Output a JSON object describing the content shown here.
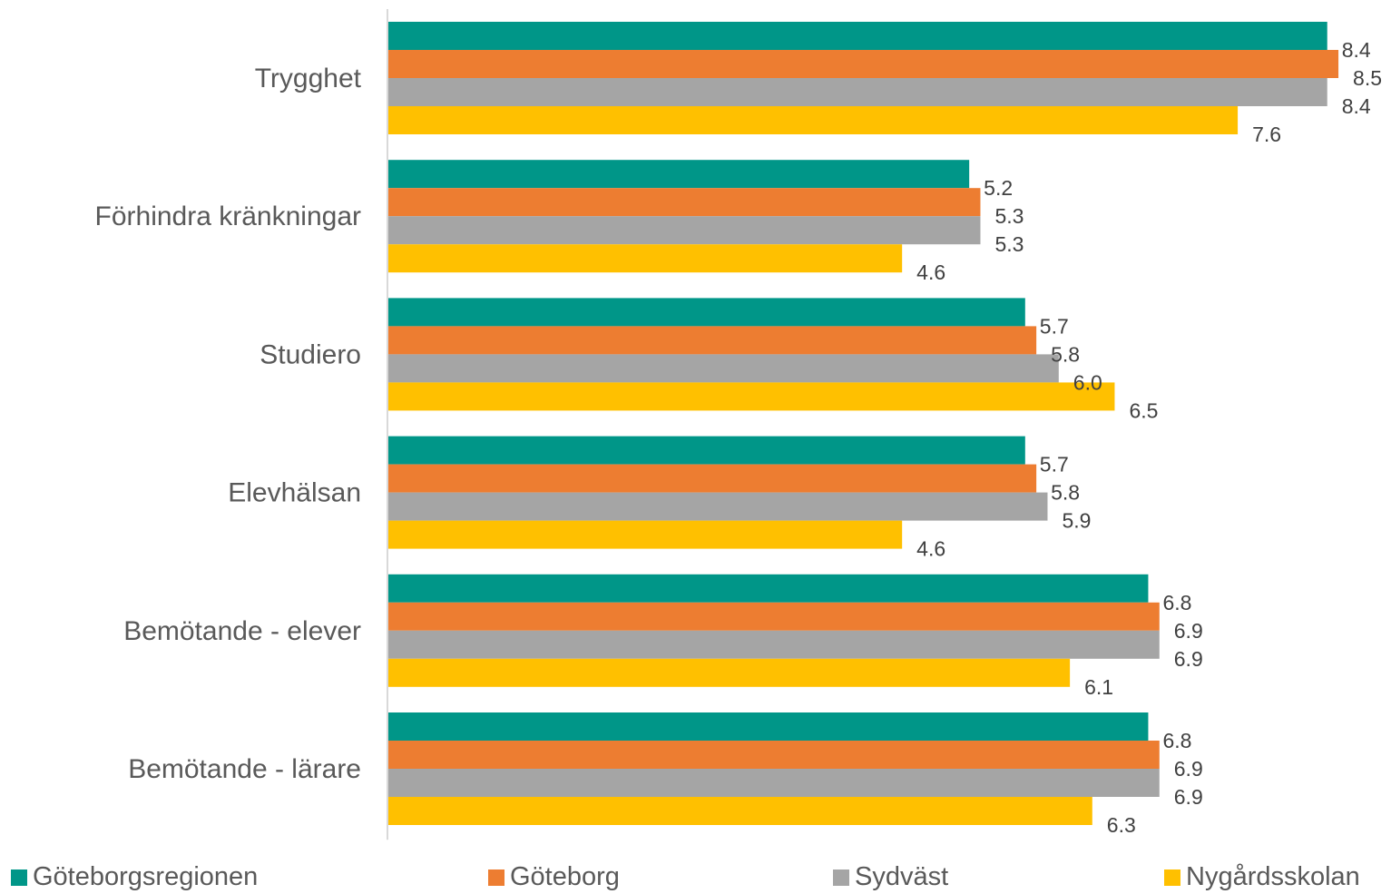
{
  "chart_data": {
    "type": "bar",
    "orientation": "horizontal",
    "categories": [
      "Trygghet",
      "Förhindra kränkningar",
      "Studiero",
      "Elevhälsan",
      "Bemötande - elever",
      "Bemötande - lärare"
    ],
    "series": [
      {
        "name": "Göteborgsregionen",
        "color": "#009688",
        "values": [
          8.4,
          5.2,
          5.7,
          5.7,
          6.8,
          6.8
        ],
        "labels": [
          "8.4",
          "5.2",
          "5.7",
          "5.7",
          "6.8",
          "6.8"
        ]
      },
      {
        "name": "Göteborg",
        "color": "#ED7D31",
        "values": [
          8.5,
          5.3,
          5.8,
          5.8,
          6.9,
          6.9
        ],
        "labels": [
          "8.5",
          "5.3",
          "5.8",
          "5.8",
          "6.9",
          "6.9"
        ]
      },
      {
        "name": "Sydväst",
        "color": "#A5A5A5",
        "values": [
          8.4,
          5.3,
          6.0,
          5.9,
          6.9,
          6.9
        ],
        "labels": [
          "8.4",
          "5.3",
          "6.0",
          "5.9",
          "6.9",
          "6.9"
        ]
      },
      {
        "name": "Nygårdsskolan",
        "color": "#FFC000",
        "values": [
          7.6,
          4.6,
          6.5,
          4.6,
          6.1,
          6.3
        ],
        "labels": [
          "7.6",
          "4.6",
          "6.5",
          "4.6",
          "6.1",
          "6.3"
        ]
      }
    ],
    "title": "",
    "xlabel": "",
    "ylabel": "",
    "xlim": [
      0,
      8.5
    ],
    "grid": false,
    "legend_position": "bottom",
    "data_labels": true
  }
}
